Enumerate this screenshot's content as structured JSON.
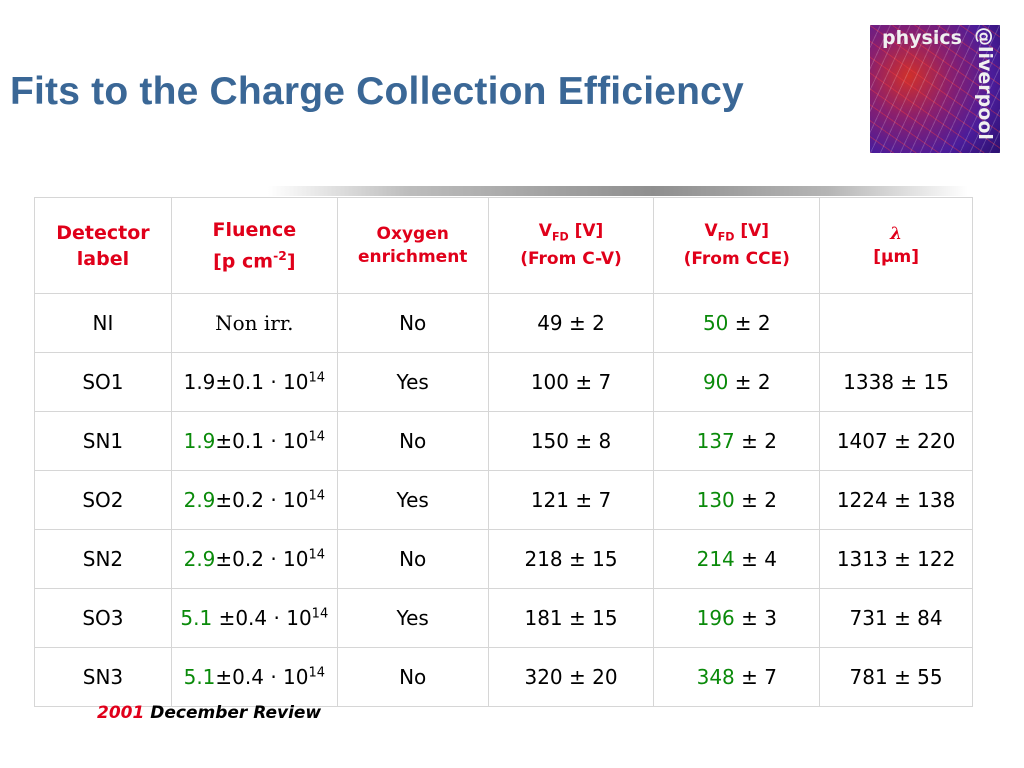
{
  "title": "Fits to the Charge Collection Efficiency",
  "logo": {
    "line1": "physics",
    "line2": "@liverpool"
  },
  "table": {
    "headers": {
      "detector": [
        "Detector",
        "label"
      ],
      "fluence": [
        "Fluence",
        "[p cm",
        "-2",
        "]"
      ],
      "oxygen": [
        "Oxygen",
        "enrichment"
      ],
      "vfd_cv": [
        "V",
        "FD",
        " [V]",
        "(From C-V)"
      ],
      "vfd_cce": [
        "V",
        "FD",
        " [V]",
        "(From CCE)"
      ],
      "lambda": [
        "λ",
        "[μm]"
      ]
    },
    "rows": [
      {
        "label": "NI",
        "fluence_main": "",
        "fluence_rest": "Non irr.",
        "fluence_exp": "",
        "oxygen": "No",
        "vfd_cv": "49 ± 2",
        "vfd_cce_val": "50",
        "vfd_cce_err": " ± 2",
        "lambda": ""
      },
      {
        "label": "SO1",
        "fluence_main": "",
        "fluence_rest": "1.9±0.1 · 10",
        "fluence_exp": "14",
        "oxygen": "Yes",
        "vfd_cv": "100 ± 7",
        "vfd_cce_val": "90",
        "vfd_cce_err": " ± 2",
        "lambda": "1338 ± 15"
      },
      {
        "label": "SN1",
        "fluence_main": "1.9",
        "fluence_rest": "±0.1 · 10",
        "fluence_exp": "14",
        "oxygen": "No",
        "vfd_cv": "150 ± 8",
        "vfd_cce_val": "137",
        "vfd_cce_err": " ± 2",
        "lambda": "1407 ± 220"
      },
      {
        "label": "SO2",
        "fluence_main": "2.9",
        "fluence_rest": "±0.2 · 10",
        "fluence_exp": "14",
        "oxygen": "Yes",
        "vfd_cv": "121 ±  7",
        "vfd_cce_val": "130",
        "vfd_cce_err": " ± 2",
        "lambda": "1224 ± 138"
      },
      {
        "label": "SN2",
        "fluence_main": "2.9",
        "fluence_rest": "±0.2 · 10",
        "fluence_exp": "14",
        "oxygen": "No",
        "vfd_cv": "218 ± 15",
        "vfd_cce_val": "214",
        "vfd_cce_err": " ± 4",
        "lambda": "1313 ± 122"
      },
      {
        "label": "SO3",
        "fluence_main": "5.1 ",
        "fluence_rest": "±0.4 · 10",
        "fluence_exp": "14",
        "oxygen": "Yes",
        "vfd_cv": "181 ± 15",
        "vfd_cce_val": "196",
        "vfd_cce_err": " ± 3",
        "lambda": "731 ± 84"
      },
      {
        "label": "SN3",
        "fluence_main": "5.1",
        "fluence_rest": "±0.4 · 10",
        "fluence_exp": "14",
        "oxygen": "No",
        "vfd_cv": "320 ± 20",
        "vfd_cce_val": "348",
        "vfd_cce_err": " ± 7",
        "lambda": "781 ± 55"
      }
    ]
  },
  "footer": {
    "year": "2001",
    "text": " December Review"
  },
  "colors": {
    "title": "#3a6796",
    "header": "#e0001a",
    "green": "#0a8a0a"
  }
}
